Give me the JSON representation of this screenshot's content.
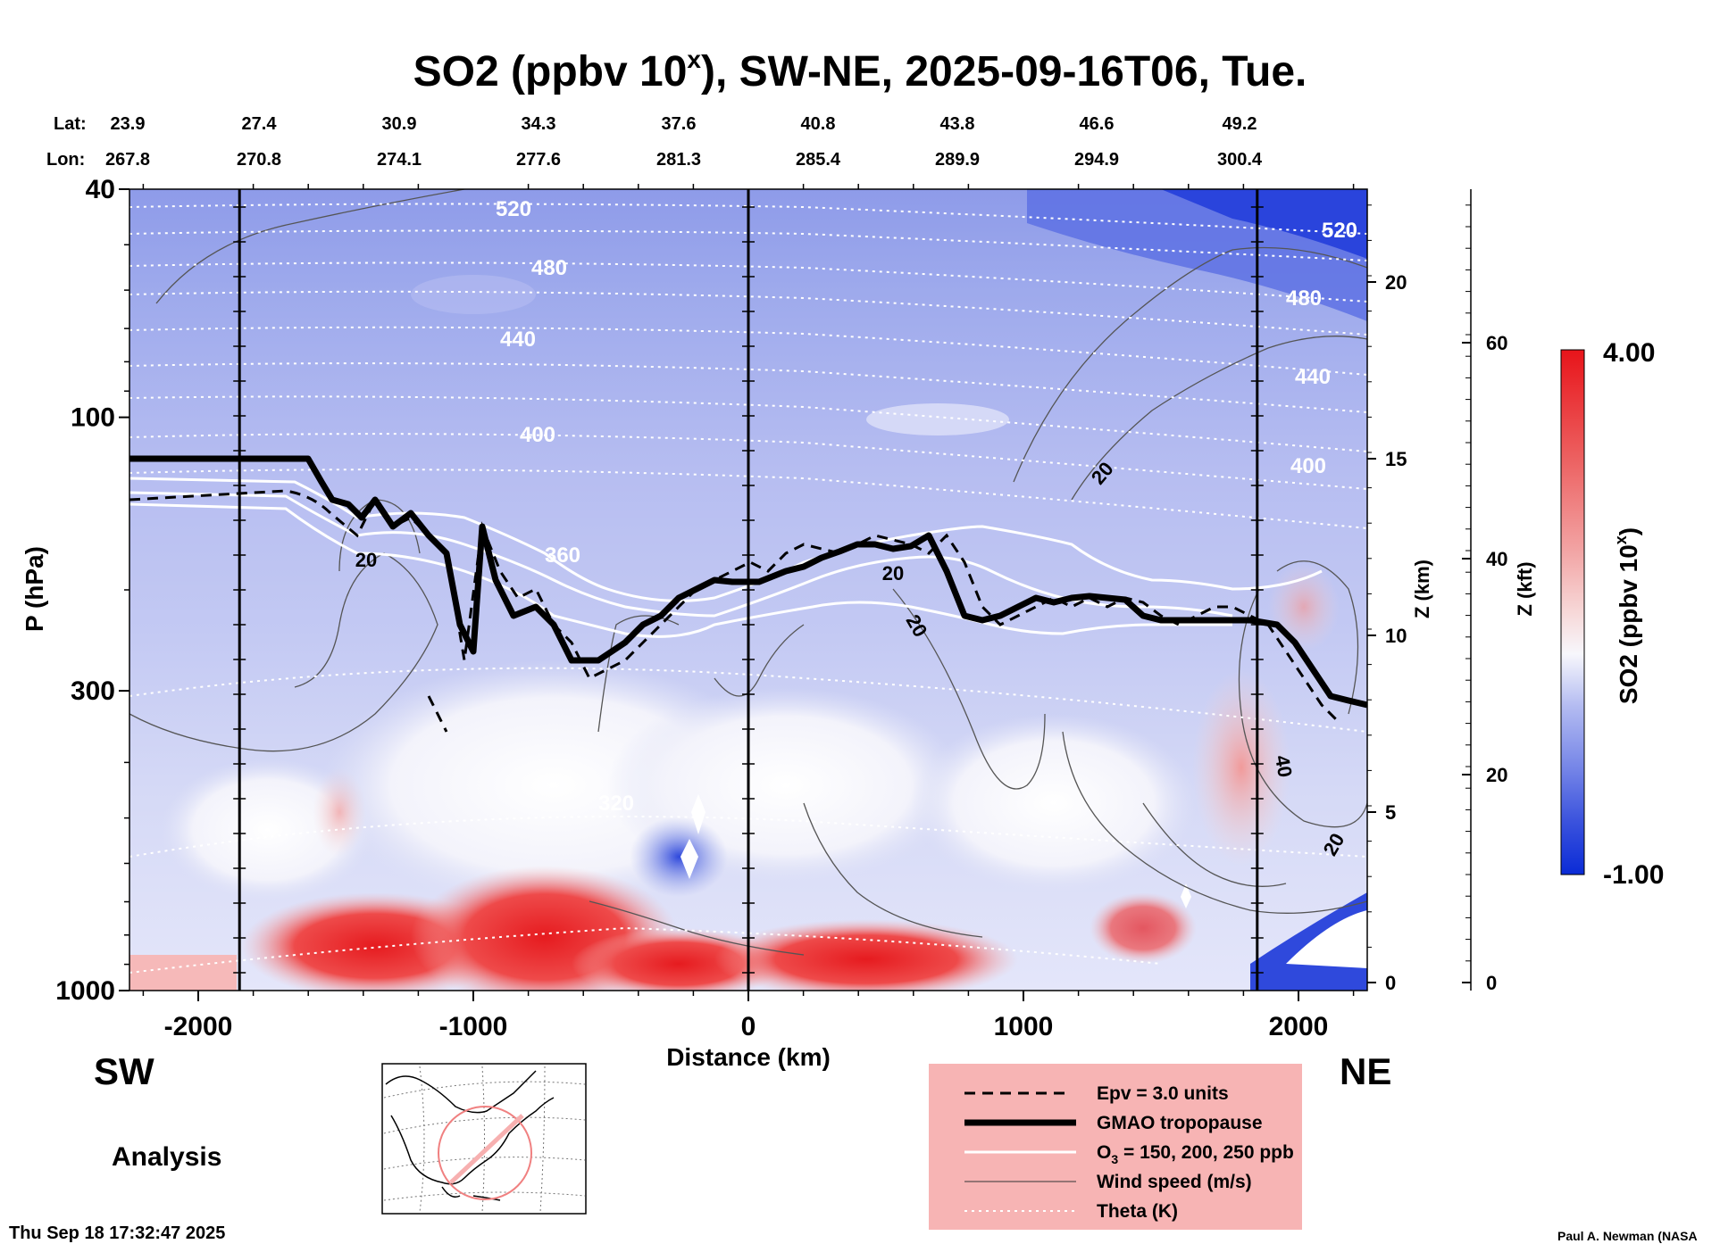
{
  "chart_data": {
    "type": "heatmap",
    "title_main": "SO2 (ppbv 10",
    "title_exp": "x",
    "title_rest": "), SW-NE, 2025-09-16T06, Tue.",
    "lat_label": "Lat:",
    "lon_label": "Lon:",
    "lat_values": [
      "23.9",
      "27.4",
      "30.9",
      "34.3",
      "37.6",
      "40.8",
      "43.8",
      "46.6",
      "49.2"
    ],
    "lon_values": [
      "267.8",
      "270.8",
      "274.1",
      "277.6",
      "281.3",
      "285.4",
      "289.9",
      "294.9",
      "300.4"
    ],
    "xlabel": "Distance (km)",
    "xlim": [
      -2250,
      2250
    ],
    "xticks": [
      -2000,
      -1000,
      0,
      1000,
      2000
    ],
    "xtick_labels": [
      "-2000",
      "-1000",
      "0",
      "1000",
      "2000"
    ],
    "ylabel": "P (hPa)",
    "ylim": [
      1000,
      40
    ],
    "yscale": "log",
    "yticks": [
      40,
      100,
      300,
      1000
    ],
    "ytick_labels": [
      "40",
      "100",
      "300",
      "1000"
    ],
    "z_km_label": "Z (km)",
    "z_km_ticks": [
      "0",
      "5",
      "10",
      "15",
      "20"
    ],
    "z_kft_label": "Z (kft)",
    "z_kft_ticks": [
      "0",
      "20",
      "40",
      "60"
    ],
    "vertical_lines_km": [
      -1850,
      0,
      1850
    ],
    "left_label": "SW",
    "right_label": "NE",
    "colorbar": {
      "label_main": "SO2 (ppbv 10",
      "label_exp": "x",
      "label_rest": ")",
      "max_label": "4.00",
      "min_label": "-1.00",
      "range": [
        -1.0,
        4.0
      ],
      "colors": [
        "#0a2bd6",
        "#5a6ee3",
        "#a9b1ef",
        "#ffffff",
        "#f6b8b8",
        "#ec5e5e",
        "#e8141a"
      ]
    },
    "theta_labels": [
      "520",
      "480",
      "440",
      "400",
      "360",
      "320",
      "520",
      "480",
      "440",
      "400"
    ],
    "wind_labels": [
      "20",
      "20",
      "20",
      "20",
      "40",
      "20"
    ],
    "legend": {
      "epv": "Epv = 3.0 units",
      "tropopause": "GMAO tropopause",
      "ozone_prefix": "O",
      "ozone_sub": "3",
      "ozone_suffix": " = 150, 200, 250 ppb",
      "wind": "Wind speed (m/s)",
      "theta": "Theta (K)",
      "background": "#f7b4b4"
    },
    "analysis_label": "Analysis",
    "timestamp": "Thu Sep 18 17:32:47 2025",
    "credit": "Paul A. Newman (NASA"
  }
}
